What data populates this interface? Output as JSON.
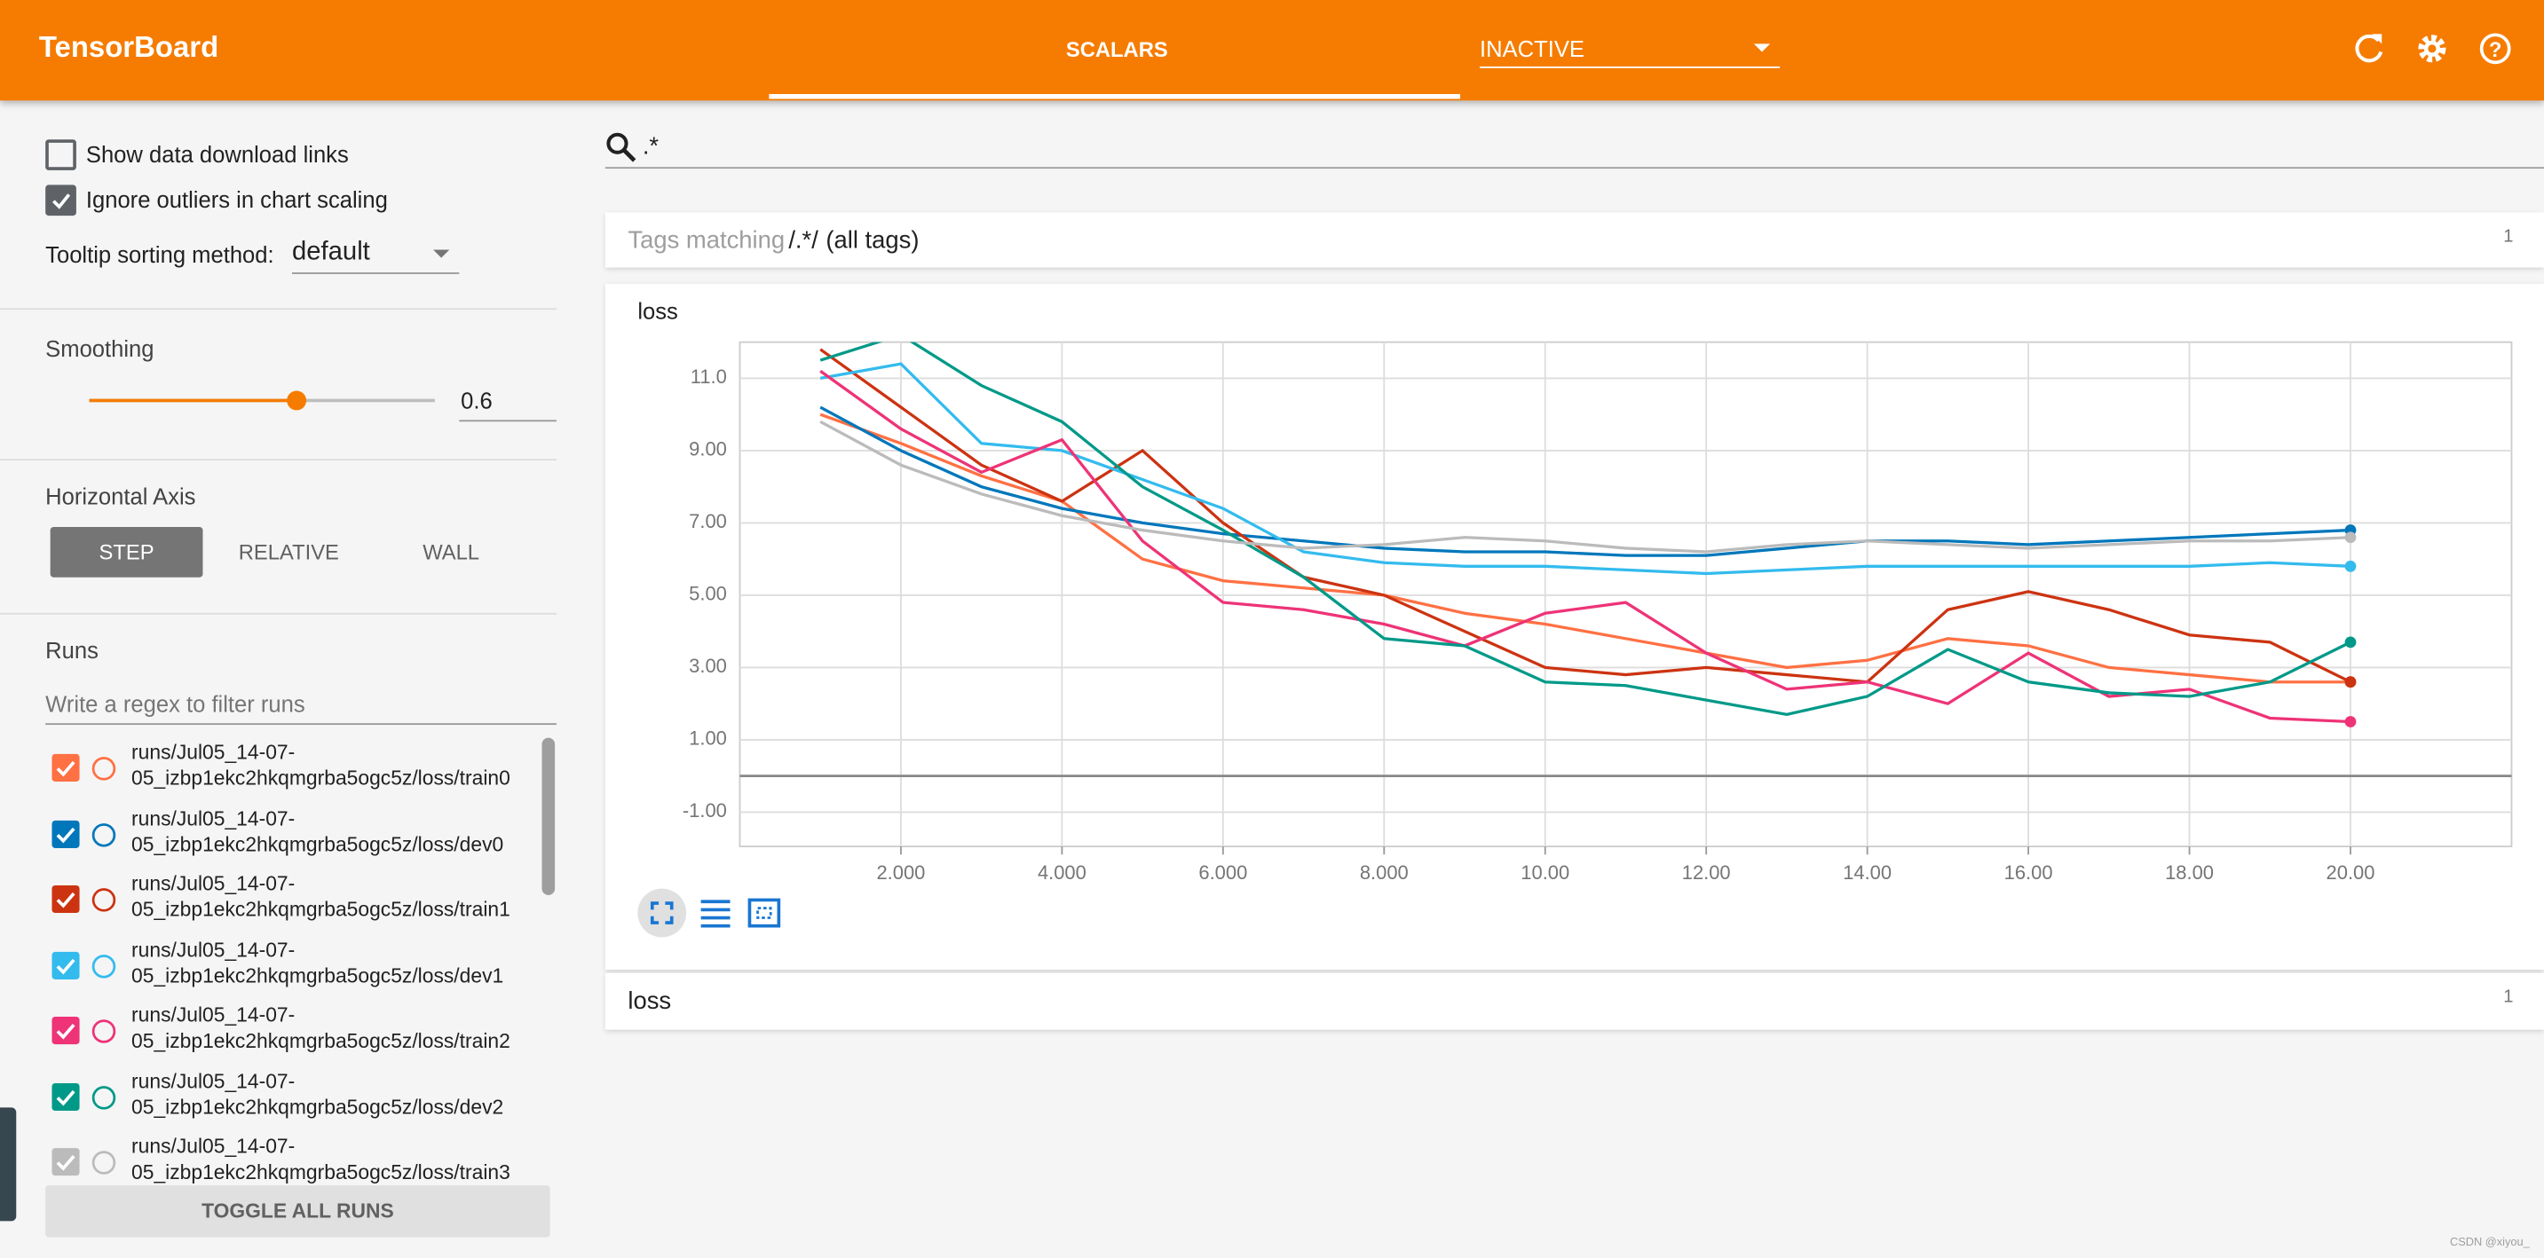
{
  "header": {
    "title": "TensorBoard",
    "tab": "SCALARS",
    "run_selector": "INACTIVE"
  },
  "sidebar": {
    "download_links": "Show data download links",
    "ignore_outliers": "Ignore outliers in chart scaling",
    "tooltip_label": "Tooltip sorting method:",
    "tooltip_value": "default",
    "smoothing_label": "Smoothing",
    "smoothing_value": 0.6,
    "horizontal_axis_label": "Horizontal Axis",
    "axis_options": [
      "STEP",
      "RELATIVE",
      "WALL"
    ],
    "runs_label": "Runs",
    "runs_filter_placeholder": "Write a regex to filter runs",
    "toggle_button": "TOGGLE ALL RUNS"
  },
  "search": {
    "query": ".*"
  },
  "tag_groups": [
    {
      "prefix": "Tags matching",
      "pattern": "/.*/",
      "suffix": "(all tags)",
      "count": 1
    },
    {
      "name": "loss",
      "count": 1
    }
  ],
  "chart_data": {
    "type": "line",
    "title": "loss",
    "x": [
      1,
      2,
      3,
      4,
      5,
      6,
      7,
      8,
      9,
      10,
      11,
      12,
      13,
      14,
      15,
      16,
      17,
      18,
      19,
      20
    ],
    "xlim": [
      0,
      22
    ],
    "ylim": [
      -1.95,
      12
    ],
    "xticks": [
      {
        "value": 2,
        "label": "2.000"
      },
      {
        "value": 4,
        "label": "4.000"
      },
      {
        "value": 6,
        "label": "6.000"
      },
      {
        "value": 8,
        "label": "8.000"
      },
      {
        "value": 10,
        "label": "10.00"
      },
      {
        "value": 12,
        "label": "12.00"
      },
      {
        "value": 14,
        "label": "14.00"
      },
      {
        "value": 16,
        "label": "16.00"
      },
      {
        "value": 18,
        "label": "18.00"
      },
      {
        "value": 20,
        "label": "20.00"
      }
    ],
    "yticks": [
      {
        "value": 11,
        "label": "11.0"
      },
      {
        "value": 9,
        "label": "9.00"
      },
      {
        "value": 7,
        "label": "7.00"
      },
      {
        "value": 5,
        "label": "5.00"
      },
      {
        "value": 3,
        "label": "3.00"
      },
      {
        "value": 1,
        "label": "1.00"
      },
      {
        "value": -1,
        "label": "-1.00"
      }
    ],
    "grid": true,
    "zero_line": true,
    "series": [
      {
        "name": "runs/Jul05_14-07-05_izbp1ekc2hkqmgrba5ogc5z/loss/train0",
        "color": "#ff7043",
        "values": [
          10.0,
          9.2,
          8.3,
          7.6,
          6.0,
          5.4,
          5.2,
          5.0,
          4.5,
          4.2,
          3.8,
          3.4,
          3.0,
          3.2,
          3.8,
          3.6,
          3.0,
          2.8,
          2.6,
          2.6
        ]
      },
      {
        "name": "runs/Jul05_14-07-05_izbp1ekc2hkqmgrba5ogc5z/loss/dev0",
        "color": "#0077bb",
        "values": [
          10.2,
          9.0,
          8.0,
          7.4,
          7.0,
          6.7,
          6.5,
          6.3,
          6.2,
          6.2,
          6.1,
          6.1,
          6.3,
          6.5,
          6.5,
          6.4,
          6.5,
          6.6,
          6.7,
          6.8
        ]
      },
      {
        "name": "runs/Jul05_14-07-05_izbp1ekc2hkqmgrba5ogc5z/loss/train1",
        "color": "#cc3311",
        "values": [
          11.8,
          10.2,
          8.6,
          7.6,
          9.0,
          7.0,
          5.5,
          5.0,
          4.0,
          3.0,
          2.8,
          3.0,
          2.8,
          2.6,
          4.6,
          5.1,
          4.6,
          3.9,
          3.7,
          2.6
        ]
      },
      {
        "name": "runs/Jul05_14-07-05_izbp1ekc2hkqmgrba5ogc5z/loss/dev1",
        "color": "#33bbee",
        "values": [
          11.0,
          11.4,
          9.2,
          9.0,
          8.2,
          7.4,
          6.2,
          5.9,
          5.8,
          5.8,
          5.7,
          5.6,
          5.7,
          5.8,
          5.8,
          5.8,
          5.8,
          5.8,
          5.9,
          5.8
        ]
      },
      {
        "name": "runs/Jul05_14-07-05_izbp1ekc2hkqmgrba5ogc5z/loss/train2",
        "color": "#ee3377",
        "values": [
          11.2,
          9.6,
          8.4,
          9.3,
          6.5,
          4.8,
          4.6,
          4.2,
          3.6,
          4.5,
          4.8,
          3.4,
          2.4,
          2.6,
          2.0,
          3.4,
          2.2,
          2.4,
          1.6,
          1.5
        ]
      },
      {
        "name": "runs/Jul05_14-07-05_izbp1ekc2hkqmgrba5ogc5z/loss/dev2",
        "color": "#009988",
        "values": [
          11.5,
          12.2,
          10.8,
          9.8,
          8.0,
          6.8,
          5.5,
          3.8,
          3.6,
          2.6,
          2.5,
          2.1,
          1.7,
          2.2,
          3.5,
          2.6,
          2.3,
          2.2,
          2.6,
          3.7
        ]
      },
      {
        "name": "runs/Jul05_14-07-05_izbp1ekc2hkqmgrba5ogc5z/loss/train3",
        "color": "#bbbbbb",
        "values": [
          9.8,
          8.6,
          7.8,
          7.2,
          6.8,
          6.5,
          6.3,
          6.4,
          6.6,
          6.5,
          6.3,
          6.2,
          6.4,
          6.5,
          6.4,
          6.3,
          6.4,
          6.5,
          6.5,
          6.6
        ]
      }
    ]
  },
  "watermark": "CSDN @xiyou_"
}
